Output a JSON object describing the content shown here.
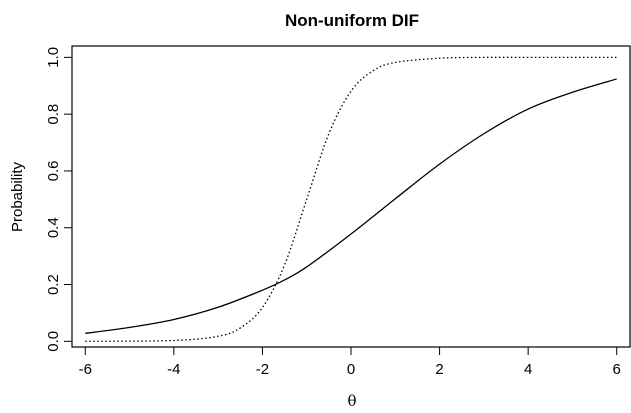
{
  "chart_data": {
    "type": "line",
    "title": "Non-uniform DIF",
    "xlabel": "θ",
    "ylabel": "Probability",
    "xlim": [
      -6.3,
      6.3
    ],
    "ylim": [
      -0.02,
      1.04
    ],
    "x_ticks": [
      -6,
      -4,
      -2,
      0,
      2,
      4,
      6
    ],
    "y_ticks": [
      0.0,
      0.2,
      0.4,
      0.6,
      0.8,
      1.0
    ],
    "x_tick_labels": [
      "-6",
      "-4",
      "-2",
      "0",
      "2",
      "4",
      "6"
    ],
    "y_tick_labels": [
      "0.0",
      "0.2",
      "0.4",
      "0.6",
      "0.8",
      "1.0"
    ],
    "grid": false,
    "box": true,
    "series": [
      {
        "style": "solid",
        "color": "#000000",
        "x": [
          -6,
          -5,
          -4,
          -3,
          -2,
          -1.5,
          -1,
          0,
          1,
          2,
          3,
          4,
          5,
          6
        ],
        "y": [
          0.028,
          0.049,
          0.077,
          0.12,
          0.18,
          0.216,
          0.262,
          0.378,
          0.502,
          0.624,
          0.731,
          0.818,
          0.877,
          0.924
        ]
      },
      {
        "style": "dotted",
        "color": "#000000",
        "x": [
          -6,
          -4,
          -3,
          -2.5,
          -2,
          -1.5,
          -1,
          -0.5,
          0,
          0.5,
          1,
          2,
          3,
          4,
          6
        ],
        "y": [
          0.0,
          0.003,
          0.018,
          0.047,
          0.119,
          0.269,
          0.5,
          0.731,
          0.881,
          0.953,
          0.982,
          0.997,
          1.0,
          1.0,
          1.0
        ]
      }
    ]
  }
}
